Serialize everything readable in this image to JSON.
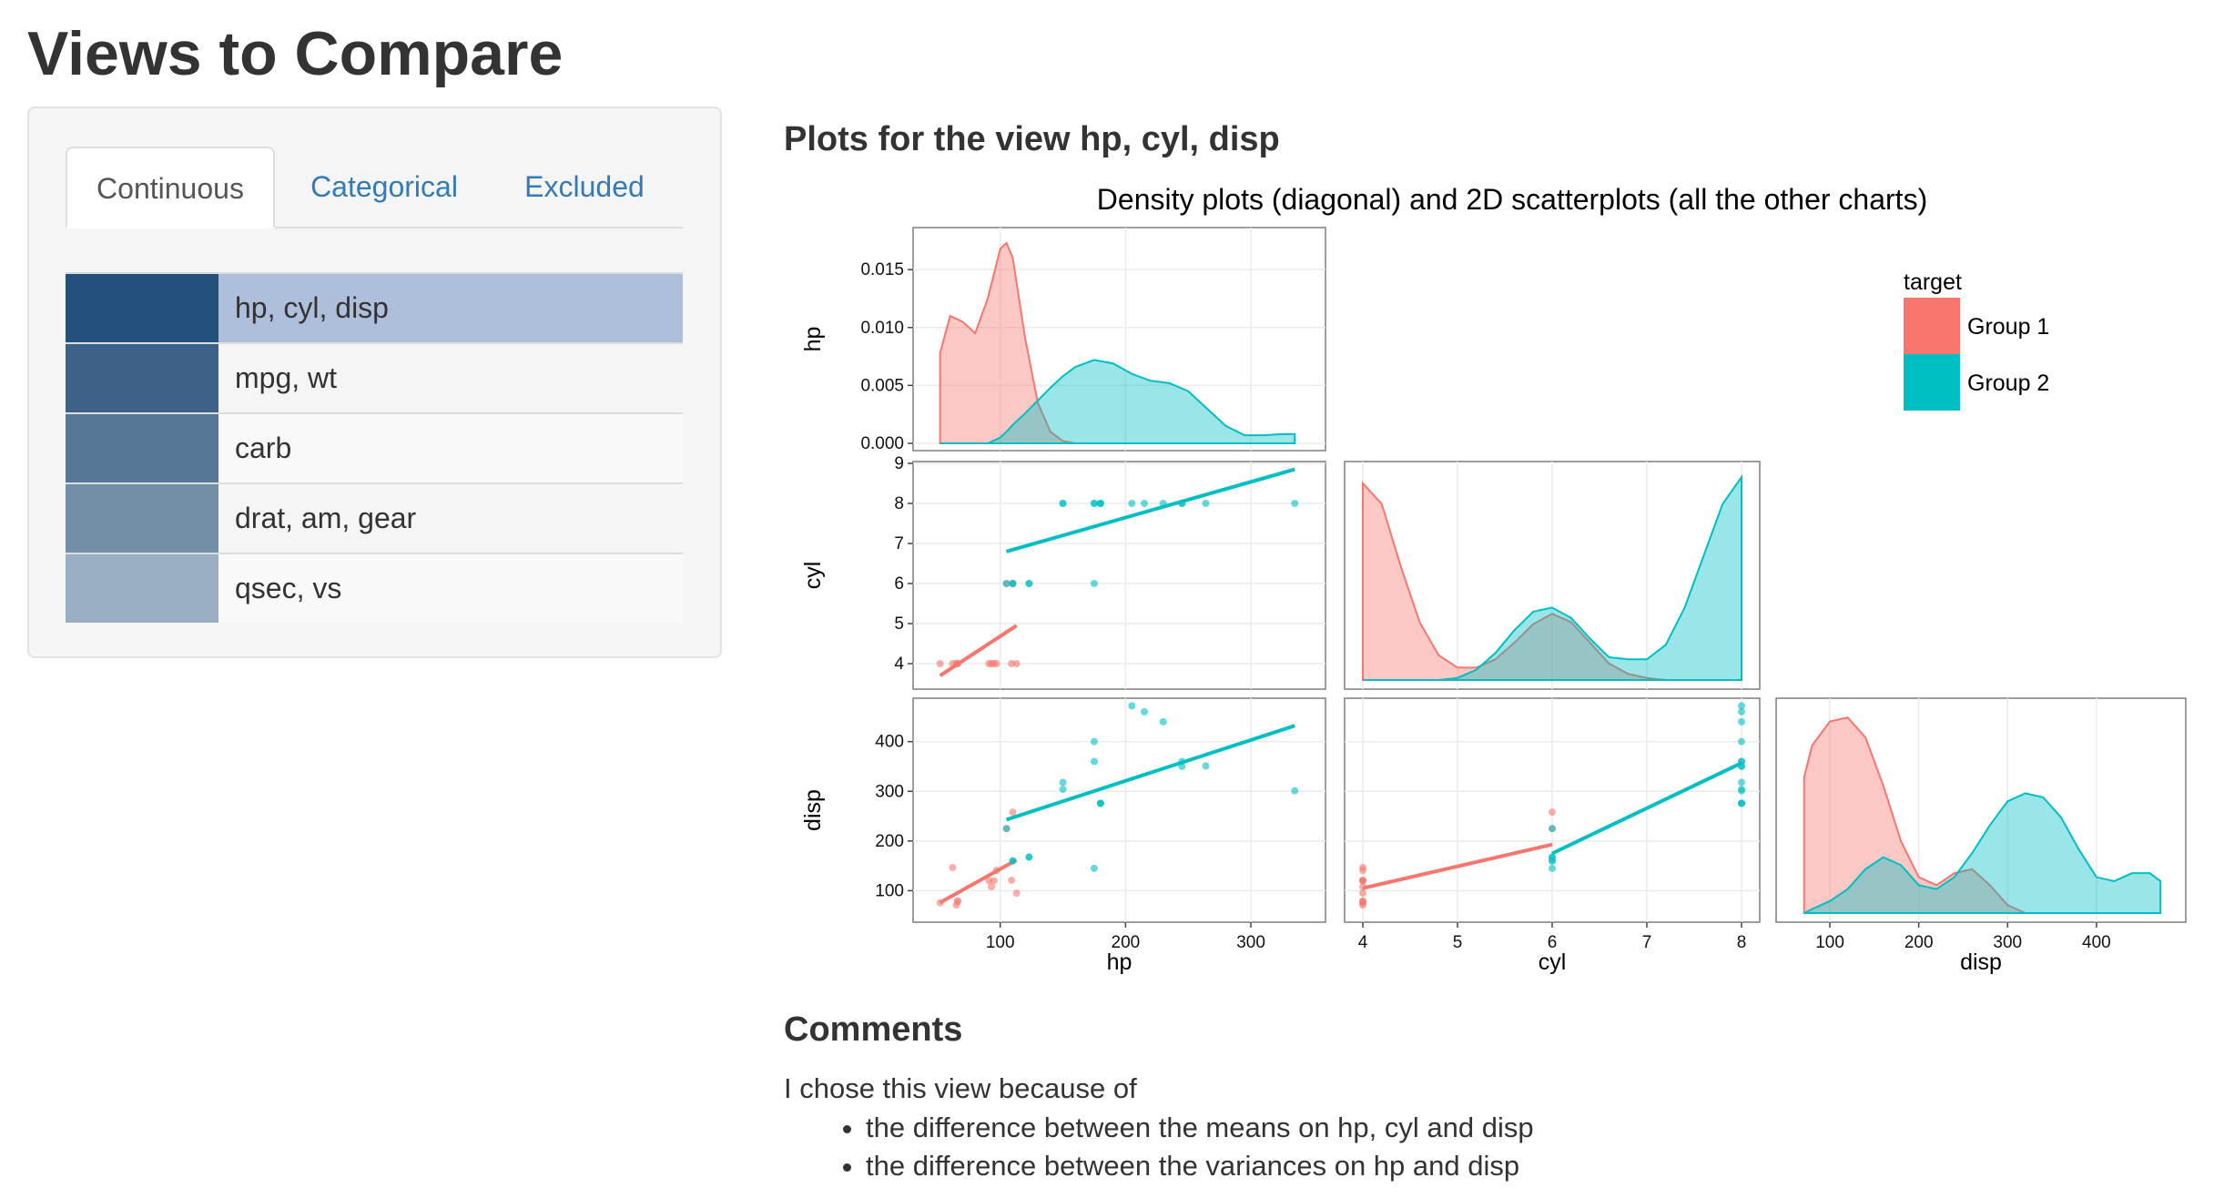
{
  "page": {
    "title": "Views to Compare"
  },
  "tabs": [
    {
      "label": "Continuous",
      "active": true
    },
    {
      "label": "Categorical",
      "active": false
    },
    {
      "label": "Excluded",
      "active": false
    }
  ],
  "views": [
    {
      "label": "hp, cyl, disp",
      "color": "#23507d",
      "selected": true
    },
    {
      "label": "mpg, wt",
      "color": "#3e6188",
      "selected": false
    },
    {
      "label": "carb",
      "color": "#577797",
      "selected": false
    },
    {
      "label": "drat, am, gear",
      "color": "#728fa8",
      "selected": false
    },
    {
      "label": "qsec, vs",
      "color": "#98aec2",
      "selected": false
    }
  ],
  "plots_heading": "Plots for the view hp, cyl, disp",
  "chart_data": {
    "type": "scatter",
    "subtype": "pairs-matrix",
    "title": "Density plots (diagonal) and 2D scatterplots (all the other charts)",
    "variables": [
      "hp",
      "cyl",
      "disp"
    ],
    "legend": {
      "title": "target",
      "position": "top-right",
      "entries": [
        {
          "name": "Group 1",
          "color": "#f8766d"
        },
        {
          "name": "Group 2",
          "color": "#00bfc4"
        }
      ]
    },
    "grid": true,
    "axes": {
      "hp": {
        "range": [
          45,
          345
        ],
        "ticks": [
          100,
          200,
          300
        ]
      },
      "cyl": {
        "range": [
          4,
          8
        ],
        "ticks": [
          4,
          5,
          6,
          7,
          8
        ]
      },
      "disp": {
        "range": [
          60,
          480
        ],
        "ticks": [
          100,
          200,
          300,
          400
        ]
      },
      "density_hp": {
        "range": [
          0,
          0.018
        ],
        "ticks": [
          "0.000",
          "0.005",
          "0.010",
          "0.015"
        ]
      },
      "cyl_y": {
        "range": [
          3.5,
          9
        ],
        "ticks": [
          4,
          5,
          6,
          7,
          8,
          9
        ]
      },
      "disp_y": {
        "range": [
          55,
          480
        ],
        "ticks": [
          100,
          200,
          300,
          400
        ]
      }
    },
    "density": {
      "hp": {
        "x": [
          52,
          60,
          70,
          80,
          90,
          100,
          105,
          110,
          120,
          130,
          140,
          150,
          160,
          175,
          190,
          205,
          220,
          235,
          250,
          265,
          280,
          295,
          310,
          325,
          335
        ],
        "Group 1": [
          0.0078,
          0.011,
          0.0105,
          0.0095,
          0.0125,
          0.0168,
          0.0173,
          0.016,
          0.009,
          0.0035,
          0.001,
          0.0002,
          0,
          0,
          0,
          0,
          0,
          0,
          0,
          0,
          0,
          0,
          0,
          0,
          0
        ],
        "Group 2": [
          0,
          0,
          0,
          0,
          0,
          0.0005,
          0.001,
          0.0016,
          0.0026,
          0.0037,
          0.0048,
          0.0058,
          0.0066,
          0.0072,
          0.0069,
          0.006,
          0.0054,
          0.0052,
          0.0045,
          0.003,
          0.0015,
          0.0007,
          0.0007,
          0.0008,
          0.0008
        ]
      },
      "cyl": {
        "x": [
          4.0,
          4.2,
          4.4,
          4.6,
          4.8,
          5.0,
          5.2,
          5.4,
          5.6,
          5.8,
          6.0,
          6.2,
          6.4,
          6.6,
          6.8,
          7.0,
          7.2,
          7.4,
          7.6,
          7.8,
          8.0
        ],
        "Group 1": [
          0.95,
          0.85,
          0.55,
          0.28,
          0.12,
          0.06,
          0.06,
          0.1,
          0.18,
          0.27,
          0.32,
          0.28,
          0.18,
          0.08,
          0.03,
          0.01,
          0,
          0,
          0,
          0,
          0
        ],
        "Group 2": [
          0,
          0,
          0,
          0,
          0,
          0.01,
          0.05,
          0.13,
          0.24,
          0.33,
          0.35,
          0.3,
          0.2,
          0.11,
          0.1,
          0.1,
          0.17,
          0.35,
          0.6,
          0.85,
          0.98
        ]
      },
      "disp": {
        "x": [
          71,
          80,
          100,
          120,
          140,
          160,
          180,
          200,
          220,
          240,
          260,
          280,
          300,
          320,
          340,
          360,
          380,
          400,
          420,
          440,
          460,
          472
        ],
        "Group 1": [
          0.0034,
          0.0042,
          0.0048,
          0.0049,
          0.0044,
          0.0032,
          0.0018,
          0.0009,
          0.0007,
          0.001,
          0.0011,
          0.0007,
          0.0002,
          0,
          0,
          0,
          0,
          0,
          0,
          0,
          0,
          0
        ],
        "Group 2": [
          0,
          0.0001,
          0.0003,
          0.0006,
          0.0011,
          0.0014,
          0.0012,
          0.0007,
          0.0006,
          0.0009,
          0.0015,
          0.0022,
          0.0028,
          0.003,
          0.0029,
          0.0024,
          0.0016,
          0.0009,
          0.0008,
          0.001,
          0.001,
          0.0008
        ]
      }
    },
    "points": {
      "Group 1": {
        "hp": [
          52,
          62,
          65,
          66,
          66,
          91,
          93,
          95,
          97,
          105,
          109,
          110,
          113
        ],
        "cyl": [
          4,
          4,
          4,
          4,
          4,
          4,
          4,
          4,
          4,
          6,
          4,
          6,
          4
        ],
        "disp": [
          75.7,
          146.7,
          71.1,
          78.7,
          79.0,
          120.3,
          108.0,
          120.1,
          140.8,
          225.0,
          121.0,
          258.0,
          95.1
        ]
      },
      "Group 2": {
        "hp": [
          105,
          110,
          110,
          123,
          123,
          150,
          150,
          175,
          175,
          175,
          180,
          180,
          180,
          205,
          215,
          230,
          245,
          245,
          264,
          335
        ],
        "cyl": [
          6,
          6,
          6,
          6,
          6,
          8,
          8,
          6,
          8,
          8,
          8,
          8,
          8,
          8,
          8,
          8,
          8,
          8,
          8,
          8
        ],
        "disp": [
          225.0,
          160.0,
          160.0,
          167.6,
          167.6,
          318.0,
          304.0,
          145.0,
          360.0,
          400.0,
          275.8,
          275.8,
          275.8,
          472.0,
          460.0,
          440.0,
          360.0,
          350.0,
          351.0,
          301.0
        ]
      }
    },
    "fit_lines": {
      "hp_vs_cyl": {
        "Group 1": [
          [
            52,
            3.7
          ],
          [
            113,
            4.95
          ]
        ],
        "Group 2": [
          [
            105,
            6.8
          ],
          [
            335,
            8.85
          ]
        ]
      },
      "hp_vs_disp": {
        "Group 1": [
          [
            52,
            76
          ],
          [
            113,
            162
          ]
        ],
        "Group 2": [
          [
            105,
            243
          ],
          [
            335,
            432
          ]
        ]
      },
      "cyl_vs_disp": {
        "Group 1": [
          [
            4,
            105
          ],
          [
            6,
            193
          ]
        ],
        "Group 2": [
          [
            6,
            175
          ],
          [
            8,
            357
          ]
        ]
      }
    }
  },
  "comments": {
    "heading": "Comments",
    "intro": "I chose this view because of",
    "items": [
      "the difference between the means on hp, cyl and disp",
      "the difference between the variances on hp and disp"
    ]
  }
}
